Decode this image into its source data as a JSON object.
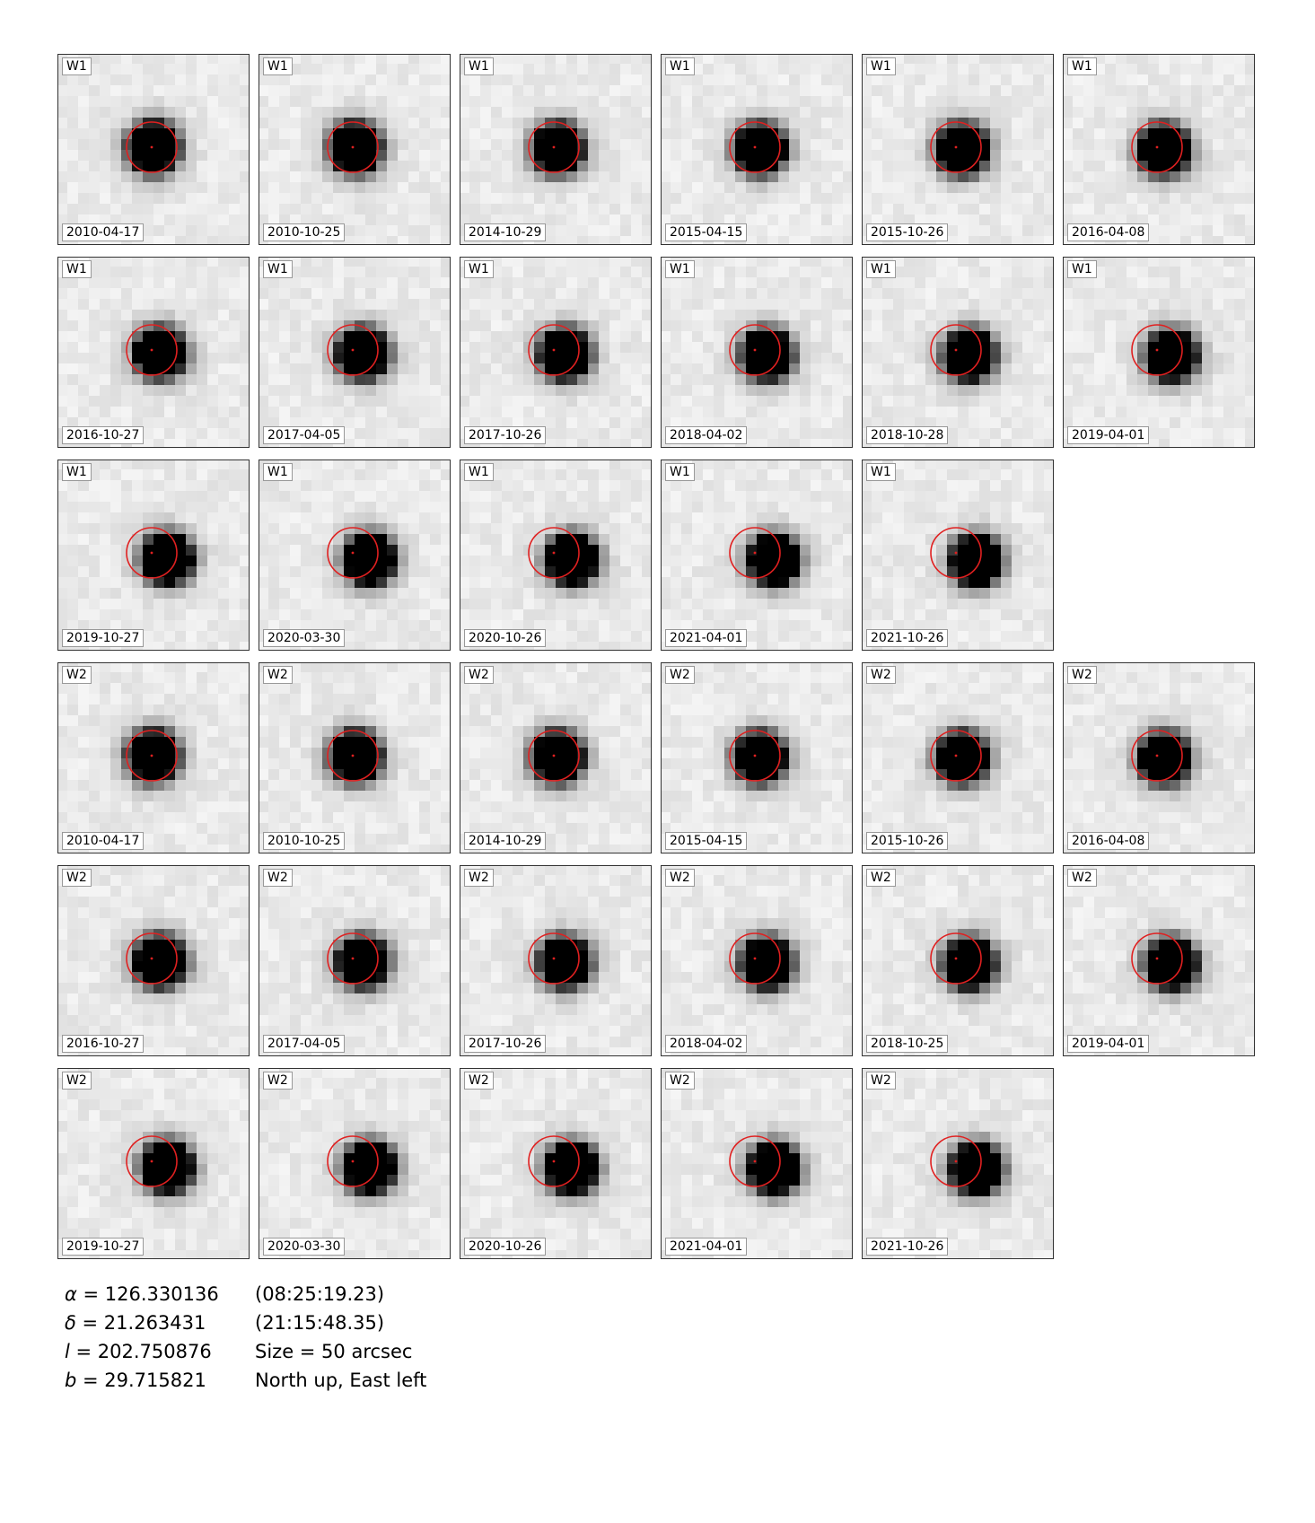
{
  "panels": [
    {
      "band": "W1",
      "date": "2010-04-17"
    },
    {
      "band": "W1",
      "date": "2010-10-25"
    },
    {
      "band": "W1",
      "date": "2014-10-29"
    },
    {
      "band": "W1",
      "date": "2015-04-15"
    },
    {
      "band": "W1",
      "date": "2015-10-26"
    },
    {
      "band": "W1",
      "date": "2016-04-08"
    },
    {
      "band": "W1",
      "date": "2016-10-27"
    },
    {
      "band": "W1",
      "date": "2017-04-05"
    },
    {
      "band": "W1",
      "date": "2017-10-26"
    },
    {
      "band": "W1",
      "date": "2018-04-02"
    },
    {
      "band": "W1",
      "date": "2018-10-28"
    },
    {
      "band": "W1",
      "date": "2019-04-01"
    },
    {
      "band": "W1",
      "date": "2019-10-27"
    },
    {
      "band": "W1",
      "date": "2020-03-30"
    },
    {
      "band": "W1",
      "date": "2020-10-26"
    },
    {
      "band": "W1",
      "date": "2021-04-01"
    },
    {
      "band": "W1",
      "date": "2021-10-26"
    },
    {
      "band": "W2",
      "date": "2010-04-17"
    },
    {
      "band": "W2",
      "date": "2010-10-25"
    },
    {
      "band": "W2",
      "date": "2014-10-29"
    },
    {
      "band": "W2",
      "date": "2015-04-15"
    },
    {
      "band": "W2",
      "date": "2015-10-26"
    },
    {
      "band": "W2",
      "date": "2016-04-08"
    },
    {
      "band": "W2",
      "date": "2016-10-27"
    },
    {
      "band": "W2",
      "date": "2017-04-05"
    },
    {
      "band": "W2",
      "date": "2017-10-26"
    },
    {
      "band": "W2",
      "date": "2018-04-02"
    },
    {
      "band": "W2",
      "date": "2018-10-25"
    },
    {
      "band": "W2",
      "date": "2019-04-01"
    },
    {
      "band": "W2",
      "date": "2019-10-27"
    },
    {
      "band": "W2",
      "date": "2020-03-30"
    },
    {
      "band": "W2",
      "date": "2020-10-26"
    },
    {
      "band": "W2",
      "date": "2021-04-01"
    },
    {
      "band": "W2",
      "date": "2021-10-26"
    }
  ],
  "info": {
    "ra_symbol": "α",
    "ra_value": " = 126.330136",
    "ra_sexagesimal": "(08:25:19.23)",
    "dec_symbol": "δ",
    "dec_value": " = 21.263431",
    "dec_sexagesimal": "(21:15:48.35)",
    "l_symbol": "l",
    "l_value": " = 202.750876",
    "size_text": "Size = 50 arcsec",
    "b_symbol": "b",
    "b_value": " = 29.715821",
    "orientation_text": "North up, East left"
  },
  "colors": {
    "circle": "#e02020",
    "source": "#000000"
  }
}
